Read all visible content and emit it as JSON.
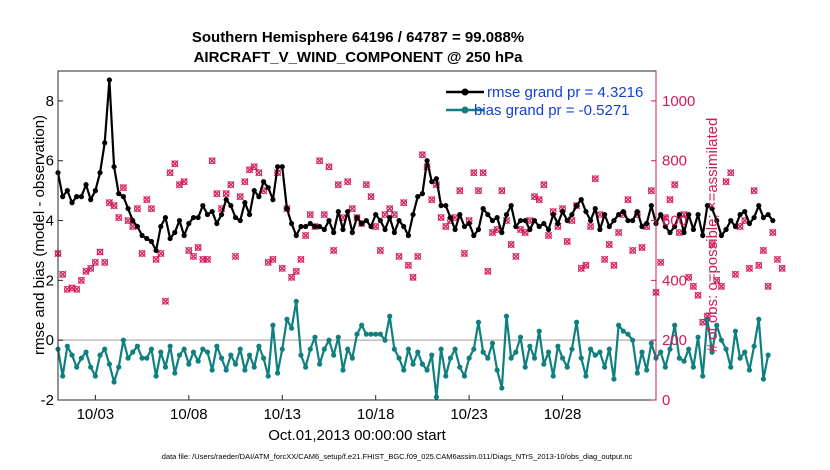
{
  "chart_data": {
    "type": "line",
    "title": "Southern Hemisphere 64196 / 64787 = 99.088%",
    "subtitle": "AIRCRAFT_V_WIND_COMPONENT @ 250 hPa",
    "xlabel": "Oct.01,2013 00:00:00 start",
    "ylabel_left": "rmse and bias (model - observation)",
    "ylabel_right": "# of obs: o=possible; ×=assimilated",
    "footnote": "data file: /Users/raeder/DAI/ATM_forcXX/CAM6_setup/f.e21.FHIST_BGC.f09_025.CAM6assim.011/Diags_NTrS_2013-10/obs_diag_output.nc",
    "xlim": [
      1,
      33
    ],
    "ylim_left": [
      -2,
      9
    ],
    "ylim_right": [
      0,
      1100
    ],
    "x_ticks": [
      3,
      8,
      13,
      18,
      23,
      28
    ],
    "x_tick_labels": [
      "10/03",
      "10/08",
      "10/13",
      "10/18",
      "10/23",
      "10/28"
    ],
    "y_left_ticks": [
      -2,
      0,
      2,
      4,
      6,
      8
    ],
    "y_right_ticks": [
      0,
      200,
      400,
      600,
      800,
      1000
    ],
    "grid": false,
    "legend_position": "top-right",
    "colors": {
      "rmse": "#000000",
      "bias": "#0f7f7f",
      "obs": "#d6185c",
      "right_axis": "#d6185c",
      "legend_text": "#1440d8",
      "zero_line": "#bdbdbd"
    },
    "x_start": 1.0,
    "x_step": 0.25,
    "series": [
      {
        "name": "rmse grand pr = 4.3216",
        "axis": "left",
        "marker": "circle-filled",
        "values": [
          5.6,
          4.8,
          5.0,
          4.6,
          4.8,
          4.8,
          5.2,
          4.7,
          5.0,
          5.6,
          6.6,
          8.7,
          5.8,
          4.9,
          4.8,
          4.4,
          4.0,
          3.8,
          3.5,
          3.4,
          3.3,
          3.0,
          3.8,
          4.1,
          3.4,
          3.6,
          4.0,
          3.5,
          3.9,
          4.1,
          4.1,
          4.5,
          4.2,
          4.3,
          3.9,
          4.2,
          4.7,
          4.5,
          4.1,
          4.0,
          4.6,
          4.2,
          5.0,
          4.8,
          5.3,
          5.1,
          4.7,
          5.8,
          5.8,
          4.4,
          3.9,
          3.5,
          3.8,
          3.8,
          3.9,
          3.8,
          3.8,
          3.7,
          4.0,
          3.6,
          4.3,
          3.7,
          4.3,
          3.6,
          4.1,
          3.9,
          4.0,
          3.8,
          4.2,
          4.0,
          3.7,
          4.1,
          3.6,
          4.0,
          3.8,
          3.5,
          4.2,
          4.8,
          4.9,
          6.0,
          5.3,
          5.4,
          4.5,
          4.5,
          4.1,
          3.7,
          4.2,
          3.8,
          3.9,
          3.5,
          3.7,
          4.4,
          4.2,
          4.0,
          4.1,
          3.6,
          4.2,
          4.5,
          3.8,
          4.0,
          4.0,
          3.7,
          4.0,
          3.8,
          3.9,
          3.7,
          4.2,
          3.9,
          4.3,
          4.0,
          4.2,
          4.5,
          4.7,
          4.3,
          4.0,
          4.4,
          3.7,
          4.2,
          3.8,
          4.0,
          4.2,
          4.3,
          4.0,
          4.0,
          4.3,
          3.8,
          3.9,
          4.5,
          3.9,
          4.2,
          3.8,
          3.6,
          3.8,
          4.2,
          3.6,
          4.2,
          3.7,
          4.2,
          3.5,
          4.5,
          4.4,
          4.0,
          3.5,
          3.7,
          4.0,
          3.8,
          4.2,
          4.3,
          3.9,
          4.1,
          4.5,
          4.1,
          4.2,
          4.0
        ]
      },
      {
        "name": "bias grand pr = -0.5271",
        "axis": "left",
        "marker": "circle-filled",
        "values": [
          -0.3,
          -1.2,
          -0.2,
          -0.5,
          -0.9,
          -0.6,
          -0.4,
          -0.9,
          -1.2,
          -0.5,
          -0.3,
          -0.8,
          -1.4,
          -0.9,
          0.0,
          -0.6,
          -0.4,
          -0.2,
          -0.6,
          -0.6,
          -0.3,
          -1.2,
          -0.4,
          -0.9,
          -0.2,
          -1.1,
          -0.5,
          -0.3,
          -0.8,
          -0.4,
          -0.7,
          -0.3,
          -0.4,
          -1.0,
          -0.2,
          -0.6,
          -1.0,
          -0.5,
          -0.8,
          -0.3,
          -1.0,
          -0.5,
          -0.9,
          -0.2,
          -0.6,
          -1.2,
          0.5,
          -1.1,
          -0.3,
          0.7,
          0.4,
          1.3,
          -0.5,
          -0.9,
          -0.3,
          0.1,
          -0.8,
          -0.3,
          0.0,
          -0.5,
          0.1,
          -1.0,
          -0.3,
          -0.6,
          0.2,
          0.5,
          0.2,
          0.2,
          0.2,
          0.2,
          0.0,
          0.8,
          -0.3,
          -0.6,
          -1.0,
          -0.3,
          -0.8,
          -0.4,
          -0.8,
          -1.0,
          -0.5,
          -1.9,
          -0.3,
          -1.2,
          -0.6,
          -0.3,
          -0.9,
          -1.2,
          -0.6,
          -0.3,
          0.6,
          -0.4,
          -0.6,
          -0.1,
          -1.0,
          -1.6,
          0.8,
          -0.6,
          -0.4,
          0.1,
          -0.9,
          -0.2,
          -0.6,
          0.3,
          -0.8,
          -0.4,
          -1.2,
          -0.2,
          -0.6,
          -0.9,
          -0.3,
          0.6,
          -0.6,
          -1.2,
          -0.3,
          -0.5,
          -0.4,
          -0.9,
          -0.3,
          -1.3,
          0.5,
          0.3,
          0.2,
          0.0,
          -1.1,
          -0.4,
          -1.0,
          -0.1,
          -0.6,
          -0.4,
          -0.9,
          -0.3,
          0.5,
          -0.6,
          -0.7,
          -0.3,
          -0.9,
          0.1,
          -1.2,
          0.7,
          -0.4,
          0.5,
          0.0,
          -0.3,
          -0.9,
          0.3,
          -0.6,
          -0.4,
          -1.0,
          -0.2,
          0.7,
          -1.3,
          -0.5
        ]
      },
      {
        "name": "obs",
        "axis": "right",
        "marker": "circle-open-and-x",
        "values": [
          490,
          420,
          370,
          375,
          370,
          400,
          430,
          440,
          460,
          495,
          460,
          660,
          650,
          610,
          710,
          600,
          580,
          640,
          490,
          670,
          640,
          470,
          490,
          330,
          760,
          790,
          720,
          730,
          500,
          480,
          510,
          470,
          470,
          800,
          690,
          640,
          690,
          720,
          480,
          680,
          730,
          770,
          780,
          760,
          700,
          460,
          470,
          760,
          440,
          640,
          410,
          430,
          470,
          550,
          620,
          580,
          800,
          620,
          780,
          500,
          720,
          610,
          730,
          640,
          610,
          590,
          720,
          680,
          580,
          500,
          620,
          640,
          620,
          480,
          660,
          450,
          410,
          480,
          820,
          780,
          670,
          720,
          610,
          580,
          600,
          610,
          700,
          490,
          600,
          760,
          700,
          760,
          430,
          560,
          570,
          700,
          600,
          520,
          480,
          570,
          560,
          600,
          680,
          670,
          720,
          550,
          630,
          580,
          640,
          530,
          600,
          650,
          440,
          450,
          580,
          740,
          620,
          470,
          520,
          450,
          560,
          620,
          670,
          500,
          620,
          510,
          580,
          700,
          360,
          460,
          610,
          670,
          720,
          560,
          620,
          410,
          380,
          350,
          260,
          280,
          520,
          400,
          380,
          730,
          760,
          420,
          580,
          600,
          440,
          700,
          450,
          500,
          380,
          560,
          470,
          440
        ]
      }
    ]
  }
}
